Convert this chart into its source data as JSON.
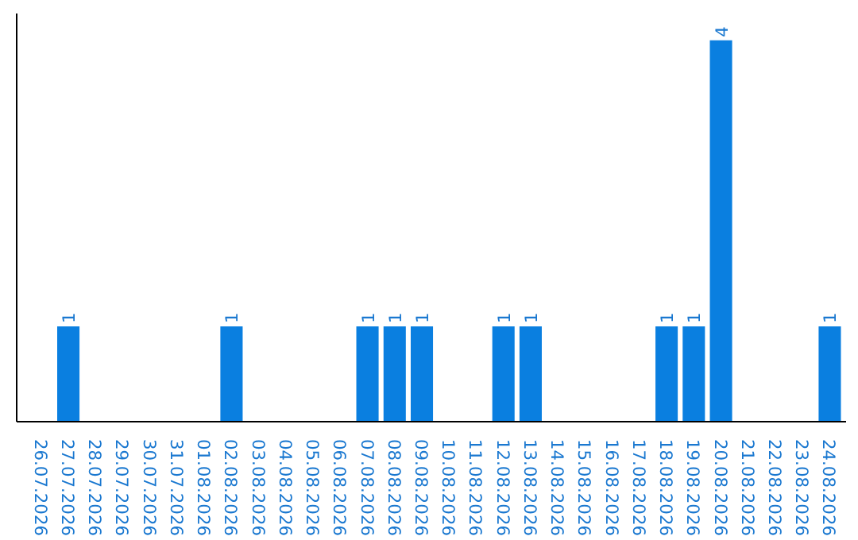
{
  "chart_data": {
    "type": "bar",
    "categories": [
      "26.07.2026",
      "27.07.2026",
      "28.07.2026",
      "29.07.2026",
      "30.07.2026",
      "31.07.2026",
      "01.08.2026",
      "02.08.2026",
      "03.08.2026",
      "04.08.2026",
      "05.08.2026",
      "06.08.2026",
      "07.08.2026",
      "08.08.2026",
      "09.08.2026",
      "10.08.2026",
      "11.08.2026",
      "12.08.2026",
      "13.08.2026",
      "14.08.2026",
      "15.08.2026",
      "16.08.2026",
      "17.08.2026",
      "18.08.2026",
      "19.08.2026",
      "20.08.2026",
      "21.08.2026",
      "22.08.2026",
      "23.08.2026",
      "24.08.2026"
    ],
    "values": [
      0,
      1,
      0,
      0,
      0,
      0,
      0,
      1,
      0,
      0,
      0,
      0,
      1,
      1,
      1,
      0,
      0,
      1,
      1,
      0,
      0,
      0,
      0,
      1,
      1,
      4,
      0,
      0,
      0,
      1
    ],
    "value_labels": [
      null,
      "1",
      null,
      null,
      null,
      null,
      null,
      "1",
      null,
      null,
      null,
      null,
      "1",
      "1",
      "1",
      null,
      null,
      "1",
      "1",
      null,
      null,
      null,
      null,
      "1",
      "1",
      "4",
      null,
      null,
      null,
      "1"
    ],
    "color": "#0a7fe0",
    "grid": false,
    "tick_labels": "x"
  }
}
